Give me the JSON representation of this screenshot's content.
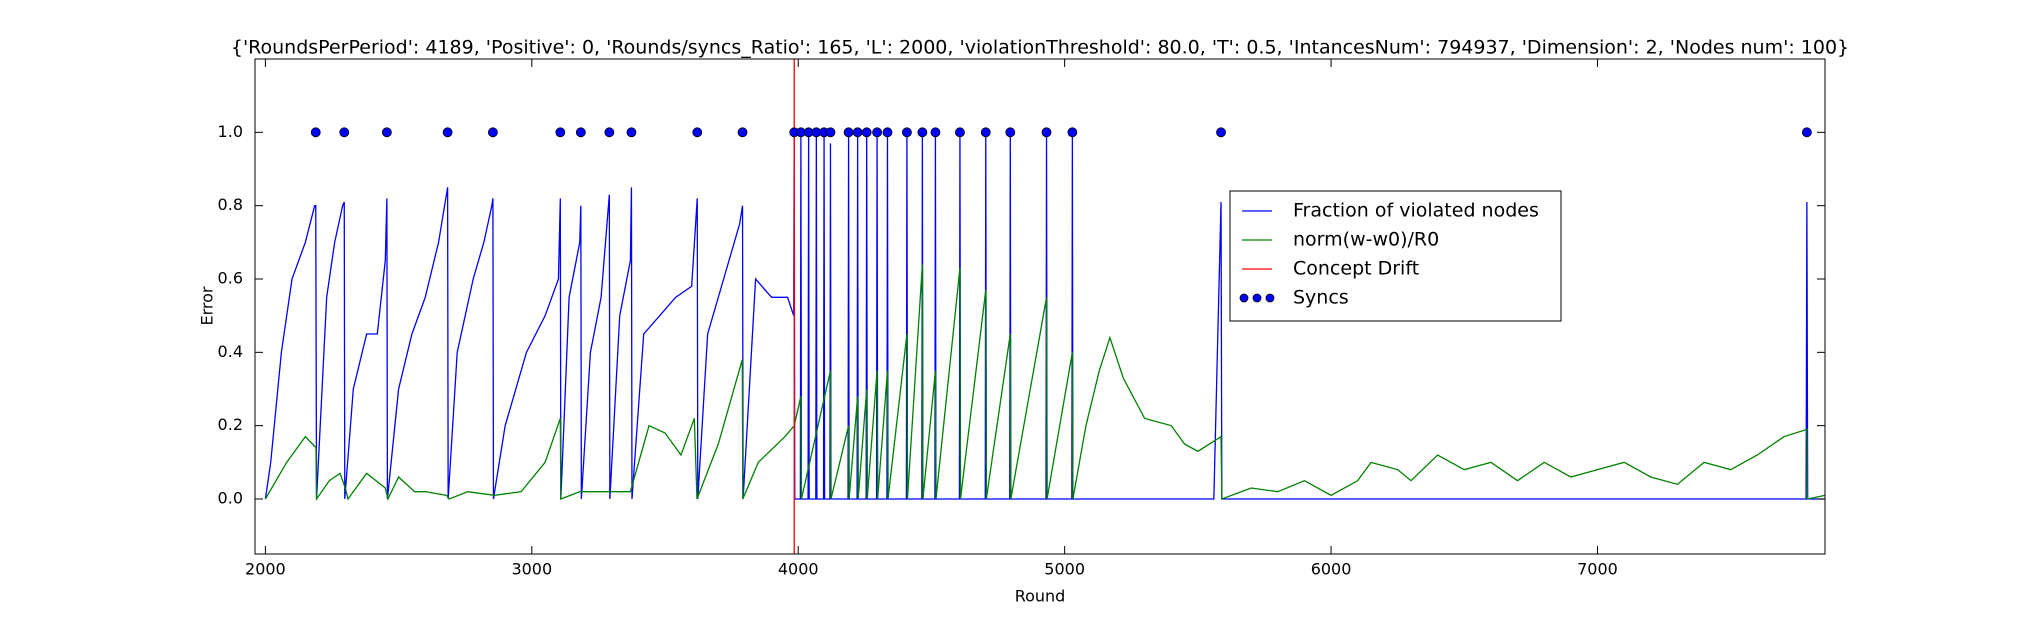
{
  "chart_data": {
    "type": "line",
    "title": "{'RoundsPerPeriod': 4189, 'Positive': 0, 'Rounds/syncs_Ratio': 165, 'L': 2000, 'violationThreshold': 80.0, 'T': 0.5, 'IntancesNum': 794937, 'Dimension': 2, 'Nodes num': 100}",
    "x_label": "Round",
    "y_label": "Error",
    "xlim": [
      1961,
      7854
    ],
    "ylim": [
      -0.15,
      1.2
    ],
    "xticks": [
      2000,
      3000,
      4000,
      5000,
      6000,
      7000
    ],
    "yticks": [
      {
        "value": 0,
        "label": "0.0"
      },
      0.2,
      0.4,
      0.6,
      0.8,
      {
        "value": 1,
        "label": "1.0"
      }
    ],
    "series": [
      {
        "name": "Fraction of violated nodes",
        "color": "#0000ff",
        "type": "line",
        "x": [
          2000,
          2020,
          2060,
          2100,
          2150,
          2185,
          2189,
          2192,
          2230,
          2260,
          2290,
          2296,
          2298,
          2330,
          2380,
          2420,
          2450,
          2456,
          2458,
          2500,
          2550,
          2600,
          2650,
          2684,
          2686,
          2720,
          2780,
          2820,
          2850,
          2854,
          2856,
          2900,
          2980,
          3050,
          3100,
          3107,
          3109,
          3140,
          3180,
          3184,
          3186,
          3220,
          3260,
          3291,
          3293,
          3330,
          3370,
          3374,
          3376,
          3420,
          3480,
          3540,
          3600,
          3621,
          3623,
          3660,
          3720,
          3780,
          3791,
          3793,
          3840,
          3900,
          3960,
          3983,
          3985,
          3987,
          4008,
          4010,
          4012,
          4037,
          4039,
          4041,
          4066,
          4068,
          4070,
          4095,
          4097,
          4099,
          4119,
          4121,
          4123,
          4187,
          4189,
          4191,
          4221,
          4223,
          4225,
          4255,
          4257,
          4259,
          4294,
          4296,
          4298,
          4333,
          4335,
          4337,
          4406,
          4408,
          4410,
          4464,
          4466,
          4468,
          4513,
          4515,
          4517,
          4605,
          4607,
          4609,
          4702,
          4704,
          4706,
          4794,
          4796,
          4798,
          4930,
          4932,
          4934,
          5027,
          5029,
          5031,
          5560,
          5587,
          5590,
          7783,
          7786,
          7789,
          7854
        ],
        "values": [
          0,
          0.1,
          0.4,
          0.6,
          0.7,
          0.8,
          0.8,
          0,
          0.55,
          0.7,
          0.8,
          0.81,
          0,
          0.3,
          0.45,
          0.45,
          0.65,
          0.82,
          0,
          0.3,
          0.45,
          0.55,
          0.7,
          0.85,
          0,
          0.4,
          0.6,
          0.7,
          0.8,
          0.82,
          0,
          0.2,
          0.4,
          0.5,
          0.6,
          0.82,
          0,
          0.55,
          0.7,
          0.8,
          0,
          0.4,
          0.55,
          0.83,
          0,
          0.5,
          0.65,
          0.85,
          0,
          0.45,
          0.5,
          0.55,
          0.58,
          0.82,
          0,
          0.45,
          0.6,
          0.75,
          0.8,
          0,
          0.6,
          0.55,
          0.55,
          0.5,
          1,
          0,
          0,
          1,
          0,
          0,
          1,
          0,
          0,
          1,
          0,
          0,
          1,
          0,
          0,
          0.97,
          0,
          0,
          1,
          0,
          0,
          1,
          0,
          0,
          1,
          0,
          0,
          1,
          0,
          0,
          1,
          0,
          0,
          1,
          0,
          0,
          1,
          0,
          0,
          1,
          0,
          0,
          1,
          0,
          0,
          1,
          0,
          0,
          1,
          0,
          0,
          1,
          0,
          0,
          1,
          0,
          0,
          0.81,
          0,
          0,
          0.81,
          0,
          0
        ]
      },
      {
        "name": "norm(w-w0)/R0",
        "color": "#008000",
        "type": "line",
        "x": [
          2000,
          2080,
          2150,
          2190,
          2192,
          2240,
          2280,
          2300,
          2310,
          2380,
          2450,
          2460,
          2500,
          2560,
          2600,
          2680,
          2690,
          2760,
          2860,
          2960,
          3050,
          3107,
          3109,
          3180,
          3290,
          3370,
          3440,
          3500,
          3560,
          3610,
          3620,
          3700,
          3790,
          3792,
          3850,
          3950,
          3985,
          4010,
          4012,
          4121,
          4123,
          4189,
          4191,
          4223,
          4225,
          4257,
          4259,
          4296,
          4298,
          4335,
          4337,
          4408,
          4410,
          4466,
          4468,
          4515,
          4517,
          4607,
          4609,
          4704,
          4706,
          4796,
          4798,
          4932,
          4934,
          5029,
          5031,
          5080,
          5130,
          5170,
          5220,
          5300,
          5400,
          5450,
          5500,
          5587,
          5590,
          5700,
          5800,
          5900,
          6000,
          6100,
          6150,
          6250,
          6300,
          6400,
          6500,
          6600,
          6700,
          6800,
          6900,
          7000,
          7100,
          7200,
          7300,
          7400,
          7500,
          7600,
          7700,
          7786,
          7788,
          7854
        ],
        "values": [
          0,
          0.1,
          0.17,
          0.14,
          0,
          0.05,
          0.07,
          0.03,
          0,
          0.07,
          0.03,
          0,
          0.06,
          0.02,
          0.02,
          0.01,
          0,
          0.02,
          0.01,
          0.02,
          0.1,
          0.22,
          0,
          0.02,
          0.02,
          0.02,
          0.2,
          0.18,
          0.12,
          0.22,
          0,
          0.15,
          0.38,
          0,
          0.1,
          0.17,
          0.2,
          0.28,
          0,
          0.35,
          0,
          0.2,
          0,
          0.28,
          0,
          0.3,
          0,
          0.35,
          0,
          0.35,
          0,
          0.45,
          0,
          0.64,
          0,
          0.35,
          0,
          0.63,
          0,
          0.57,
          0,
          0.45,
          0,
          0.55,
          0,
          0.4,
          0,
          0.2,
          0.35,
          0.44,
          0.33,
          0.22,
          0.2,
          0.15,
          0.13,
          0.17,
          0,
          0.03,
          0.02,
          0.05,
          0.01,
          0.05,
          0.1,
          0.08,
          0.05,
          0.12,
          0.08,
          0.1,
          0.05,
          0.1,
          0.06,
          0.08,
          0.1,
          0.06,
          0.04,
          0.1,
          0.08,
          0.12,
          0.17,
          0.19,
          0,
          0.01
        ]
      },
      {
        "name": "Concept Drift",
        "color": "#ff0000",
        "type": "vline",
        "x": 3985
      },
      {
        "name": "Syncs",
        "color": "#0000ff",
        "type": "scatter",
        "x": [
          2189,
          2296,
          2456,
          2684,
          2854,
          3107,
          3184,
          3291,
          3374,
          3621,
          3791,
          3985,
          4010,
          4039,
          4068,
          4097,
          4121,
          4189,
          4223,
          4257,
          4296,
          4335,
          4408,
          4466,
          4515,
          4607,
          4704,
          4796,
          4932,
          5029,
          5587,
          7786
        ],
        "values": [
          1,
          1,
          1,
          1,
          1,
          1,
          1,
          1,
          1,
          1,
          1,
          1,
          1,
          1,
          1,
          1,
          1,
          1,
          1,
          1,
          1,
          1,
          1,
          1,
          1,
          1,
          1,
          1,
          1,
          1,
          1,
          1
        ]
      }
    ]
  }
}
